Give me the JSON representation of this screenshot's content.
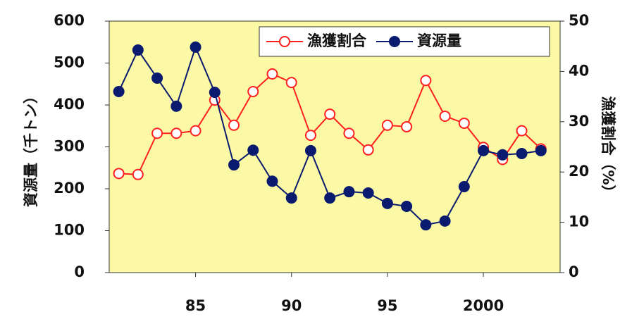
{
  "chart_data": {
    "type": "line",
    "ylabel": "資源量（千トン）",
    "y2label": "漁獲割合（%）",
    "x": [
      1981,
      1982,
      1983,
      1984,
      1985,
      1986,
      1987,
      1988,
      1989,
      1990,
      1991,
      1992,
      1993,
      1994,
      1995,
      1996,
      1997,
      1998,
      1999,
      2000,
      2001,
      2002,
      2003
    ],
    "xlim": [
      1980.5,
      2004
    ],
    "xticks": [
      {
        "value": 1985,
        "label": "85"
      },
      {
        "value": 1990,
        "label": "90"
      },
      {
        "value": 1995,
        "label": "95"
      },
      2000
    ],
    "ylim": [
      0,
      600
    ],
    "yticks": [
      0,
      100,
      200,
      300,
      400,
      500,
      600
    ],
    "y2lim": [
      0,
      50
    ],
    "y2ticks": [
      0,
      10,
      20,
      30,
      40,
      50
    ],
    "legend": "top-right",
    "series": [
      {
        "name": "漁獲割合",
        "color": "#ff2020",
        "axis": "y2",
        "marker": "open",
        "values": [
          19.7,
          19.5,
          27.7,
          27.7,
          28.2,
          34.3,
          29.3,
          36,
          39.5,
          37.8,
          27.3,
          31.5,
          27.7,
          24.4,
          29.3,
          29,
          38.2,
          31.1,
          29.7,
          24.9,
          22.5,
          28.2,
          24.6
        ]
      },
      {
        "name": "資源量",
        "color": "#0a1a6e",
        "marker": "filled",
        "values": [
          432,
          531,
          464,
          397,
          538,
          430,
          257,
          292,
          218,
          178,
          291,
          178,
          193,
          190,
          165,
          158,
          114,
          123,
          205,
          291,
          281,
          284,
          291
        ]
      }
    ]
  }
}
